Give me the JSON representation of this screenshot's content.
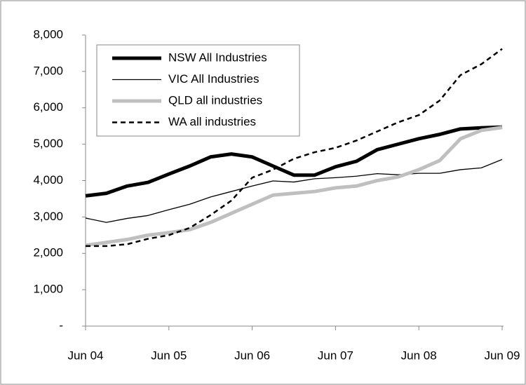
{
  "chart_data": {
    "type": "line",
    "categories": [
      "Jun 04",
      null,
      null,
      null,
      "Jun 05",
      null,
      null,
      null,
      "Jun 06",
      null,
      null,
      null,
      "Jun 07",
      null,
      null,
      null,
      "Jun 08",
      null,
      null,
      null,
      "Jun 09"
    ],
    "series": [
      {
        "name": "NSW All Industries",
        "color": "#000000",
        "line_width": 5,
        "dash": false,
        "values": [
          3580,
          3650,
          3850,
          3950,
          4180,
          4400,
          4650,
          4730,
          4650,
          4400,
          4150,
          4150,
          4380,
          4530,
          4850,
          5000,
          5150,
          5270,
          5420,
          5450,
          5470
        ]
      },
      {
        "name": "VIC All Industries",
        "color": "#000000",
        "line_width": 1.3,
        "dash": false,
        "values": [
          2970,
          2850,
          2960,
          3040,
          3200,
          3350,
          3550,
          3700,
          3850,
          3990,
          3960,
          4050,
          4080,
          4120,
          4190,
          4160,
          4200,
          4200,
          4300,
          4350,
          4580
        ]
      },
      {
        "name": "QLD all industries",
        "color": "#bfbfbf",
        "line_width": 5,
        "dash": false,
        "values": [
          2220,
          2300,
          2380,
          2500,
          2570,
          2650,
          2850,
          3100,
          3350,
          3600,
          3650,
          3700,
          3800,
          3850,
          4000,
          4100,
          4300,
          4550,
          5150,
          5380,
          5460
        ]
      },
      {
        "name": "WA all industries",
        "color": "#000000",
        "line_width": 2.5,
        "dash": true,
        "values": [
          2200,
          2200,
          2250,
          2400,
          2500,
          2700,
          3050,
          3450,
          4080,
          4300,
          4600,
          4780,
          4900,
          5100,
          5350,
          5600,
          5800,
          6200,
          6900,
          7200,
          7620
        ]
      }
    ],
    "ylim": [
      0,
      8000
    ],
    "yticks": [
      {
        "value": 0,
        "label": "-"
      },
      {
        "value": 1000,
        "label": "1,000"
      },
      {
        "value": 2000,
        "label": "2,000"
      },
      {
        "value": 3000,
        "label": "3,000"
      },
      {
        "value": 4000,
        "label": "4,000"
      },
      {
        "value": 5000,
        "label": "5,000"
      },
      {
        "value": 6000,
        "label": "6,000"
      },
      {
        "value": 7000,
        "label": "7,000"
      },
      {
        "value": 8000,
        "label": "8,000"
      }
    ],
    "grid": false,
    "legend": "top-left"
  }
}
